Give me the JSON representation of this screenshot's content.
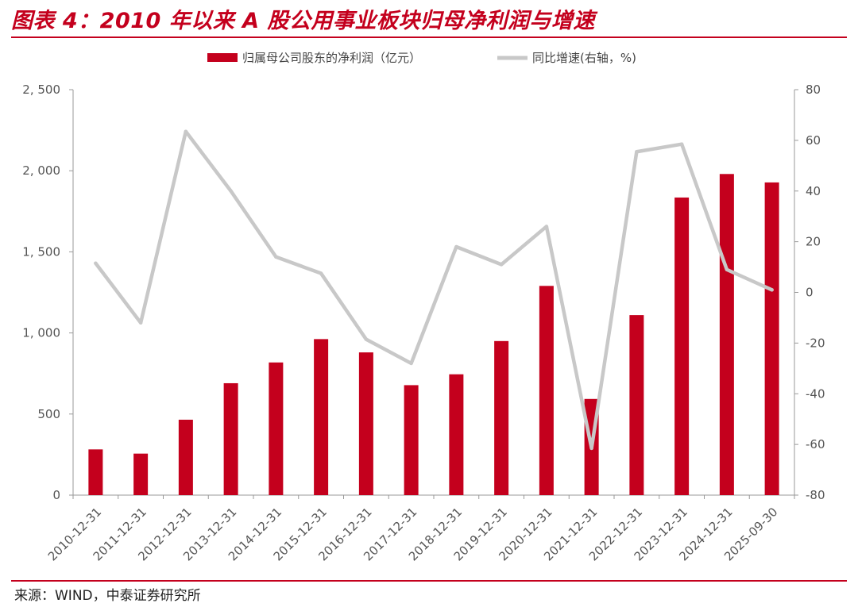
{
  "header": {
    "title": "图表 4：2010 年以来 A 股公用事业板块归母净利润与增速"
  },
  "footer": {
    "source": "来源：WIND，中泰证券研究所"
  },
  "colors": {
    "bar": "#c4001d",
    "line": "#c8c8c8",
    "accent": "#c4001d",
    "axis": "#999999"
  },
  "chart_data": {
    "type": "bar",
    "categories": [
      "2010-12-31",
      "2011-12-31",
      "2012-12-31",
      "2013-12-31",
      "2014-12-31",
      "2015-12-31",
      "2016-12-31",
      "2017-12-31",
      "2018-12-31",
      "2019-12-31",
      "2020-12-31",
      "2021-12-31",
      "2022-12-31",
      "2023-12-31",
      "2024-12-31",
      "2025-09-30"
    ],
    "series": [
      {
        "name": "归属母公司股东的净利润（亿元）",
        "type": "bar",
        "axis": "left",
        "values": [
          282,
          256,
          465,
          690,
          818,
          962,
          880,
          678,
          745,
          950,
          1290,
          593,
          1110,
          1835,
          1980,
          1928
        ]
      },
      {
        "name": "同比增速(右轴，%)",
        "type": "line",
        "axis": "right",
        "values": [
          11.5,
          -12,
          63.5,
          40,
          14,
          7.5,
          -18.5,
          -28,
          18,
          11,
          26,
          -61.5,
          55.5,
          58.5,
          9,
          1
        ]
      }
    ],
    "y_left": {
      "min": 0,
      "max": 2500,
      "ticks": [
        0,
        500,
        1000,
        1500,
        2000,
        2500
      ],
      "tick_labels": [
        "0",
        "500",
        "1, 000",
        "1, 500",
        "2, 000",
        "2, 500"
      ]
    },
    "y_right": {
      "min": -80,
      "max": 80,
      "ticks": [
        -80,
        -60,
        -40,
        -20,
        0,
        20,
        40,
        60,
        80
      ],
      "tick_labels": [
        "-80",
        "-60",
        "-40",
        "-20",
        "0",
        "20",
        "40",
        "60",
        "80"
      ]
    },
    "grid": false,
    "legend_position": "top-center",
    "x_tick_rotation": -45
  }
}
